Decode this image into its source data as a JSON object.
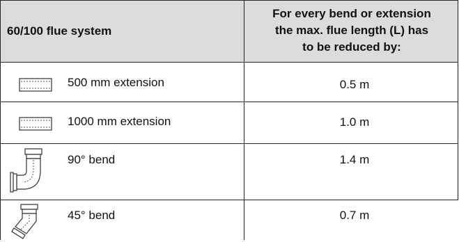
{
  "table": {
    "header": {
      "left": "60/100 flue system",
      "right_lines": [
        "For every bend or extension",
        "the max. flue length (L) has",
        "to be reduced by:"
      ]
    },
    "rows": [
      {
        "label": "500 mm extension",
        "value": "0.5 m",
        "icon": "extension-pipe-icon"
      },
      {
        "label": "1000 mm extension",
        "value": "1.0 m",
        "icon": "extension-pipe-icon"
      },
      {
        "label": "90° bend",
        "value": "1.4 m",
        "icon": "elbow-90-icon"
      },
      {
        "label": "45° bend",
        "value": "0.7 m",
        "icon": "elbow-45-icon"
      }
    ]
  }
}
